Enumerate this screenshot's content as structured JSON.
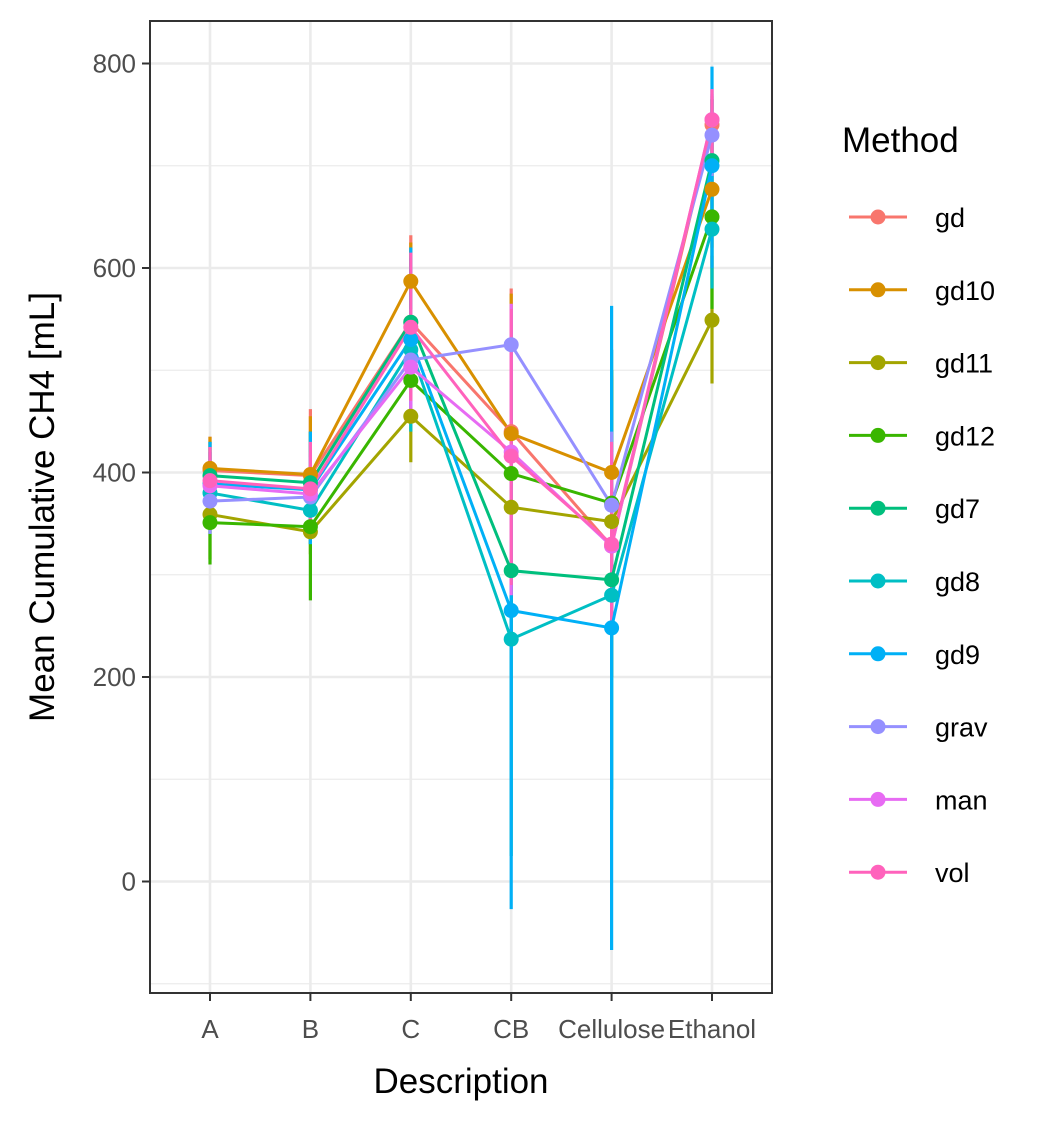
{
  "chart_data": {
    "type": "line",
    "xlabel": "Description",
    "ylabel": "Mean Cumulative CH4 [mL]",
    "categories": [
      "A",
      "B",
      "C",
      "CB",
      "Cellulose",
      "Ethanol"
    ],
    "ylim": [
      -108,
      840
    ],
    "yticks": [
      0,
      200,
      400,
      600,
      800
    ],
    "grid": true,
    "legend": {
      "title": "Method",
      "position": "right"
    },
    "series": [
      {
        "name": "gd",
        "color": "#F8766D",
        "values": [
          402,
          397,
          547,
          440,
          328,
          740
        ],
        "err": [
          [
            365,
            435
          ],
          [
            330,
            462
          ],
          [
            455,
            632
          ],
          [
            300,
            580
          ],
          [
            200,
            495
          ],
          [
            700,
            768
          ]
        ]
      },
      {
        "name": "gd10",
        "color": "#D89000",
        "values": [
          404,
          398,
          587,
          438,
          400,
          677
        ],
        "err": [
          [
            370,
            435
          ],
          [
            345,
            455
          ],
          [
            520,
            625
          ],
          [
            300,
            575
          ],
          [
            310,
            492
          ],
          [
            620,
            730
          ]
        ]
      },
      {
        "name": "gd11",
        "color": "#A3A500",
        "values": [
          359,
          342,
          455,
          366,
          352,
          549
        ],
        "err": [
          [
            315,
            400
          ],
          [
            320,
            370
          ],
          [
            410,
            500
          ],
          [
            240,
            495
          ],
          [
            200,
            500
          ],
          [
            487,
            612
          ]
        ]
      },
      {
        "name": "gd12",
        "color": "#39B600",
        "values": [
          351,
          347,
          490,
          399,
          370,
          650
        ],
        "err": [
          [
            310,
            395
          ],
          [
            275,
            420
          ],
          [
            450,
            530
          ],
          [
            260,
            540
          ],
          [
            240,
            500
          ],
          [
            560,
            765
          ]
        ]
      },
      {
        "name": "gd7",
        "color": "#00BF7D",
        "values": [
          397,
          390,
          547,
          304,
          295,
          705
        ],
        "err": [
          [
            365,
            430
          ],
          [
            345,
            440
          ],
          [
            480,
            610
          ],
          [
            25,
            560
          ],
          [
            70,
            520
          ],
          [
            640,
            765
          ]
        ]
      },
      {
        "name": "gd8",
        "color": "#00BFC4",
        "values": [
          380,
          363,
          520,
          237,
          280,
          638
        ],
        "err": [
          [
            340,
            420
          ],
          [
            330,
            400
          ],
          [
            440,
            600
          ],
          [
            60,
            420
          ],
          [
            90,
            470
          ],
          [
            580,
            700
          ]
        ]
      },
      {
        "name": "gd9",
        "color": "#00B0F6",
        "values": [
          389,
          383,
          530,
          265,
          248,
          700
        ],
        "err": [
          [
            350,
            430
          ],
          [
            330,
            440
          ],
          [
            450,
            620
          ],
          [
            -27,
            560
          ],
          [
            -67,
            563
          ],
          [
            600,
            797
          ]
        ]
      },
      {
        "name": "grav",
        "color": "#9590FF",
        "values": [
          372,
          376,
          510,
          525,
          368,
          730
        ],
        "err": [
          [
            340,
            405
          ],
          [
            335,
            415
          ],
          [
            460,
            560
          ],
          [
            490,
            560
          ],
          [
            300,
            440
          ],
          [
            690,
            770
          ]
        ]
      },
      {
        "name": "man",
        "color": "#E76BF3",
        "values": [
          387,
          379,
          503,
          420,
          328,
          745
        ],
        "err": [
          [
            350,
            420
          ],
          [
            340,
            420
          ],
          [
            460,
            550
          ],
          [
            280,
            565
          ],
          [
            250,
            420
          ],
          [
            710,
            775
          ]
        ]
      },
      {
        "name": "vol",
        "color": "#FF62BC",
        "values": [
          392,
          384,
          542,
          416,
          330,
          745
        ],
        "err": [
          [
            355,
            425
          ],
          [
            340,
            430
          ],
          [
            470,
            615
          ],
          [
            290,
            560
          ],
          [
            250,
            430
          ],
          [
            710,
            775
          ]
        ]
      }
    ]
  }
}
